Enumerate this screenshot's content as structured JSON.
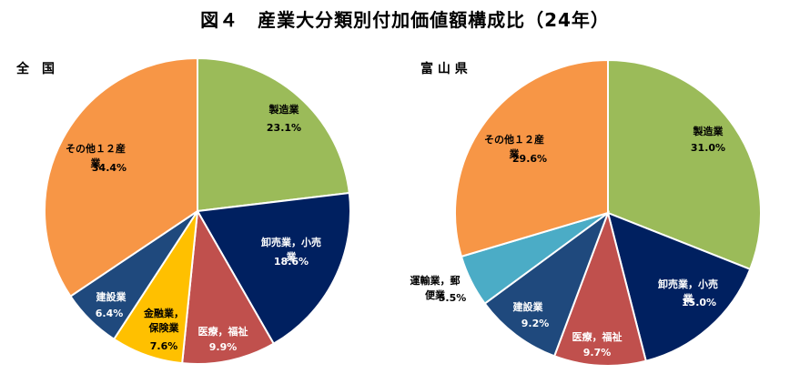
{
  "figure_title": "図４　産業大分類別付加価値額構成比（24年）",
  "chart_data": [
    {
      "type": "pie",
      "title": "全　国",
      "slices": [
        {
          "label": "製造業",
          "value": 23.1,
          "display": "23.1%",
          "color": "#9bbb59",
          "text_color": "#000000",
          "label_lines": [
            "製造業"
          ]
        },
        {
          "label": "卸売業，小売業",
          "value": 18.6,
          "display": "18.6%",
          "color": "#002060",
          "text_color": "#ffffff",
          "label_lines": [
            "卸売業，小売",
            "業"
          ]
        },
        {
          "label": "医療，福祉",
          "value": 9.9,
          "display": "9.9%",
          "color": "#c0504d",
          "text_color": "#ffffff",
          "label_lines": [
            "医療，福祉"
          ]
        },
        {
          "label": "金融業，保険業",
          "value": 7.6,
          "display": "7.6%",
          "color": "#ffc000",
          "text_color": "#000000",
          "label_lines": [
            "金融業，",
            "保険業"
          ]
        },
        {
          "label": "建設業",
          "value": 6.4,
          "display": "6.4%",
          "color": "#1f497d",
          "text_color": "#ffffff",
          "label_lines": [
            "建設業"
          ]
        },
        {
          "label": "その他１２産業",
          "value": 34.4,
          "display": "34.4%",
          "color": "#f79646",
          "text_color": "#000000",
          "label_lines": [
            "その他１２産",
            "業"
          ]
        }
      ]
    },
    {
      "type": "pie",
      "title": "富 山 県",
      "slices": [
        {
          "label": "製造業",
          "value": 31.0,
          "display": "31.0%",
          "color": "#9bbb59",
          "text_color": "#000000",
          "label_lines": [
            "製造業"
          ]
        },
        {
          "label": "卸売業，小売業",
          "value": 15.0,
          "display": "15.0%",
          "color": "#002060",
          "text_color": "#ffffff",
          "label_lines": [
            "卸売業，小売",
            "業"
          ]
        },
        {
          "label": "医療，福祉",
          "value": 9.7,
          "display": "9.7%",
          "color": "#c0504d",
          "text_color": "#ffffff",
          "label_lines": [
            "医療，福祉"
          ]
        },
        {
          "label": "建設業",
          "value": 9.2,
          "display": "9.2%",
          "color": "#1f497d",
          "text_color": "#ffffff",
          "label_lines": [
            "建設業"
          ]
        },
        {
          "label": "運輸業，郵便業",
          "value": 5.5,
          "display": "5.5%",
          "color": "#4bacc6",
          "text_color": "#000000",
          "label_lines": [
            "運輸業，郵",
            "便業"
          ]
        },
        {
          "label": "その他１２産業",
          "value": 29.6,
          "display": "29.6%",
          "color": "#f79646",
          "text_color": "#000000",
          "label_lines": [
            "その他１２産",
            "業"
          ]
        }
      ]
    }
  ]
}
